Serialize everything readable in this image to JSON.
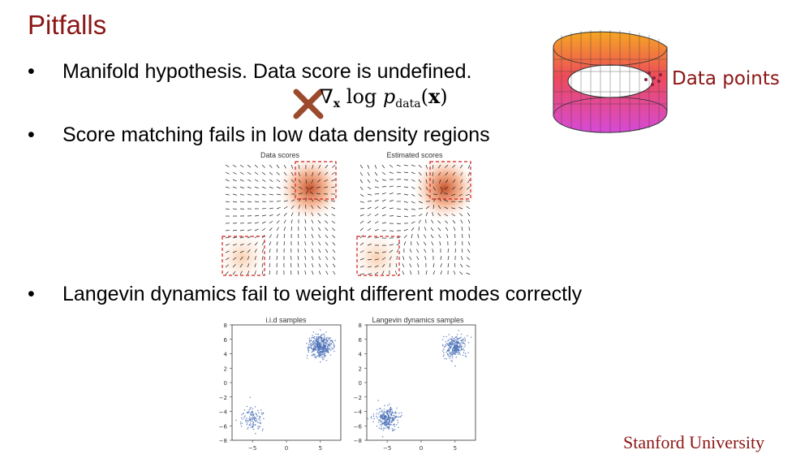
{
  "slide": {
    "title": "Pitfalls",
    "bullets": [
      {
        "marker": "•",
        "text": "Manifold hypothesis. Data score is undefined."
      },
      {
        "marker": "•",
        "text": "Score matching fails in low data density regions"
      },
      {
        "marker": "•",
        "text": "Langevin dynamics fail to weight different modes correctly"
      }
    ],
    "formula": {
      "nabla": "∇",
      "sub": "x",
      "log": "log",
      "p": "p",
      "psub": "data",
      "arg": "x"
    },
    "manifold_label": "Data points",
    "footer": "Stanford University"
  },
  "colors": {
    "title": "#8c1515",
    "cross": "#9b4a2c",
    "score_mode": "#d2572b",
    "scatter": "#4a6fb5"
  },
  "chart_data": [
    {
      "type": "vector_field",
      "title": "Data scores",
      "modes": [
        {
          "name": "upper-right",
          "weight": "high"
        },
        {
          "name": "lower-left",
          "weight": "low"
        }
      ]
    },
    {
      "type": "vector_field",
      "title": "Estimated scores",
      "modes": [
        {
          "name": "upper-right",
          "weight": "high"
        },
        {
          "name": "lower-left",
          "weight": "low"
        }
      ]
    },
    {
      "type": "scatter",
      "title": "i.i.d samples",
      "xlim": [
        -8,
        8
      ],
      "ylim": [
        -8,
        8
      ],
      "xticks": [
        "−5",
        "0",
        "5"
      ],
      "yticks": [
        "8",
        "6",
        "4",
        "2",
        "0",
        "−2",
        "−4",
        "−6",
        "−8"
      ],
      "clusters": [
        {
          "center": [
            5,
            5
          ],
          "std": 0.8,
          "count": 420
        },
        {
          "center": [
            -5,
            -5
          ],
          "std": 0.8,
          "count": 120
        }
      ]
    },
    {
      "type": "scatter",
      "title": "Langevin dynamics samples",
      "xlim": [
        -8,
        8
      ],
      "ylim": [
        -8,
        8
      ],
      "xticks": [
        "−5",
        "0",
        "5"
      ],
      "yticks": [
        "8",
        "6",
        "4",
        "2",
        "0",
        "−2",
        "−4",
        "−6",
        "−8"
      ],
      "clusters": [
        {
          "center": [
            5,
            5
          ],
          "std": 0.8,
          "count": 270
        },
        {
          "center": [
            -5,
            -5
          ],
          "std": 0.8,
          "count": 270
        }
      ]
    }
  ]
}
